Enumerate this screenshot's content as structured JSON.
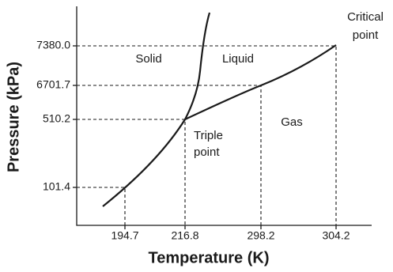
{
  "axes": {
    "y_title": "Pressure (kPa)",
    "x_title": "Temperature (K)",
    "y_ticks": [
      "7380.0",
      "6701.7",
      "510.2",
      "101.4"
    ],
    "x_ticks": [
      "194.7",
      "216.8",
      "298.2",
      "304.2"
    ]
  },
  "regions": {
    "solid": "Solid",
    "liquid": "Liquid",
    "gas": "Gas"
  },
  "points": {
    "triple": [
      "Triple",
      "point"
    ],
    "critical": [
      "Critical",
      "point"
    ]
  }
}
